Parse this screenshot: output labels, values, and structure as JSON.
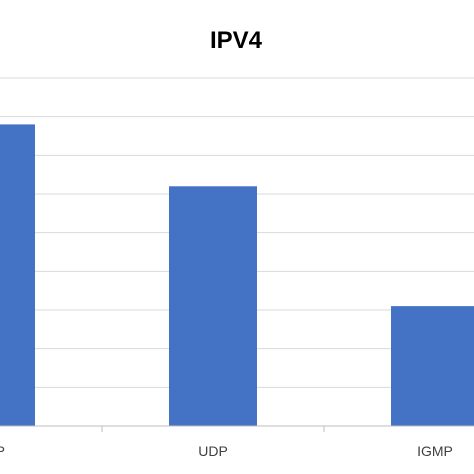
{
  "chart_data": {
    "type": "bar",
    "title": "IPV4",
    "categories": [
      "TCP",
      "UDP",
      "IGMP"
    ],
    "values": [
      7.8,
      6.2,
      3.1
    ],
    "ylim": [
      0,
      9
    ],
    "grid": true,
    "legend": "none",
    "bar_color": "#4472c4",
    "grid_color": "#d9d9d9",
    "axis_color": "#bfbfbf",
    "title_color": "#000000",
    "tick_color": "#404040"
  }
}
